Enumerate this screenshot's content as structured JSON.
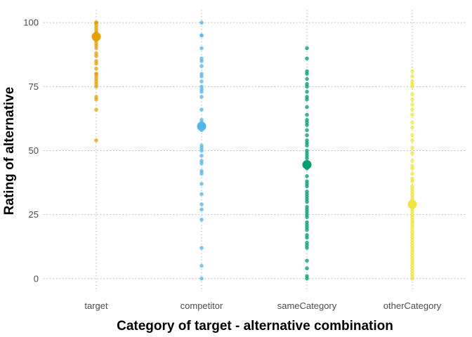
{
  "chart_data": {
    "type": "scatter",
    "title": "",
    "xlabel": "Category of target - alternative combination",
    "ylabel": "Rating of alternative",
    "categories": [
      "target",
      "competitor",
      "sameCategory",
      "otherCategory"
    ],
    "ylim": [
      -5,
      105
    ],
    "yticks": [
      0,
      25,
      50,
      75,
      100
    ],
    "grid": true,
    "legend": "none",
    "series": [
      {
        "category": "target",
        "color": "#E69F00",
        "mean": 94.5,
        "values": [
          100,
          100,
          100,
          100,
          99,
          98,
          97,
          96,
          96,
          95,
          95,
          94,
          93,
          92,
          91,
          90,
          88,
          87,
          85,
          84,
          82,
          80,
          80,
          79,
          78,
          77,
          76,
          75,
          71,
          70,
          66,
          54
        ]
      },
      {
        "category": "competitor",
        "color": "#56B4E9",
        "mean": 59.5,
        "values": [
          100,
          95,
          95,
          90,
          86,
          85,
          83,
          80,
          79,
          77,
          75,
          74,
          73,
          71,
          66,
          62,
          61,
          60,
          60,
          59,
          58,
          52,
          51,
          50,
          48,
          46,
          45,
          42,
          41,
          37,
          33,
          29,
          27,
          23,
          12,
          5,
          0
        ]
      },
      {
        "category": "sameCategory",
        "color": "#009E73",
        "mean": 44.5,
        "values": [
          90,
          86,
          81,
          80,
          78,
          76,
          75,
          73,
          71,
          70,
          67,
          64,
          62,
          61,
          60,
          58,
          56,
          54,
          53,
          52,
          50,
          49,
          48,
          47,
          45,
          44,
          43,
          40,
          38,
          37,
          36,
          34,
          33,
          32,
          31,
          30,
          28,
          27,
          26,
          25,
          24,
          22,
          21,
          20,
          19,
          17,
          16,
          14,
          13,
          12,
          7,
          4,
          1,
          0
        ]
      },
      {
        "category": "otherCategory",
        "color": "#F0E442",
        "mean": 29,
        "values": [
          81,
          79,
          77,
          76,
          75,
          72,
          70,
          68,
          66,
          64,
          61,
          59,
          56,
          54,
          51,
          49,
          46,
          44,
          43,
          41,
          39,
          38,
          36,
          35,
          34,
          33,
          32,
          31,
          30,
          29,
          28,
          27,
          26,
          25,
          24,
          23,
          22,
          21,
          20,
          19,
          18,
          17,
          16,
          15,
          14,
          13,
          12,
          11,
          10,
          9,
          8,
          7,
          6,
          5,
          4,
          3,
          2,
          1,
          0
        ]
      }
    ]
  }
}
